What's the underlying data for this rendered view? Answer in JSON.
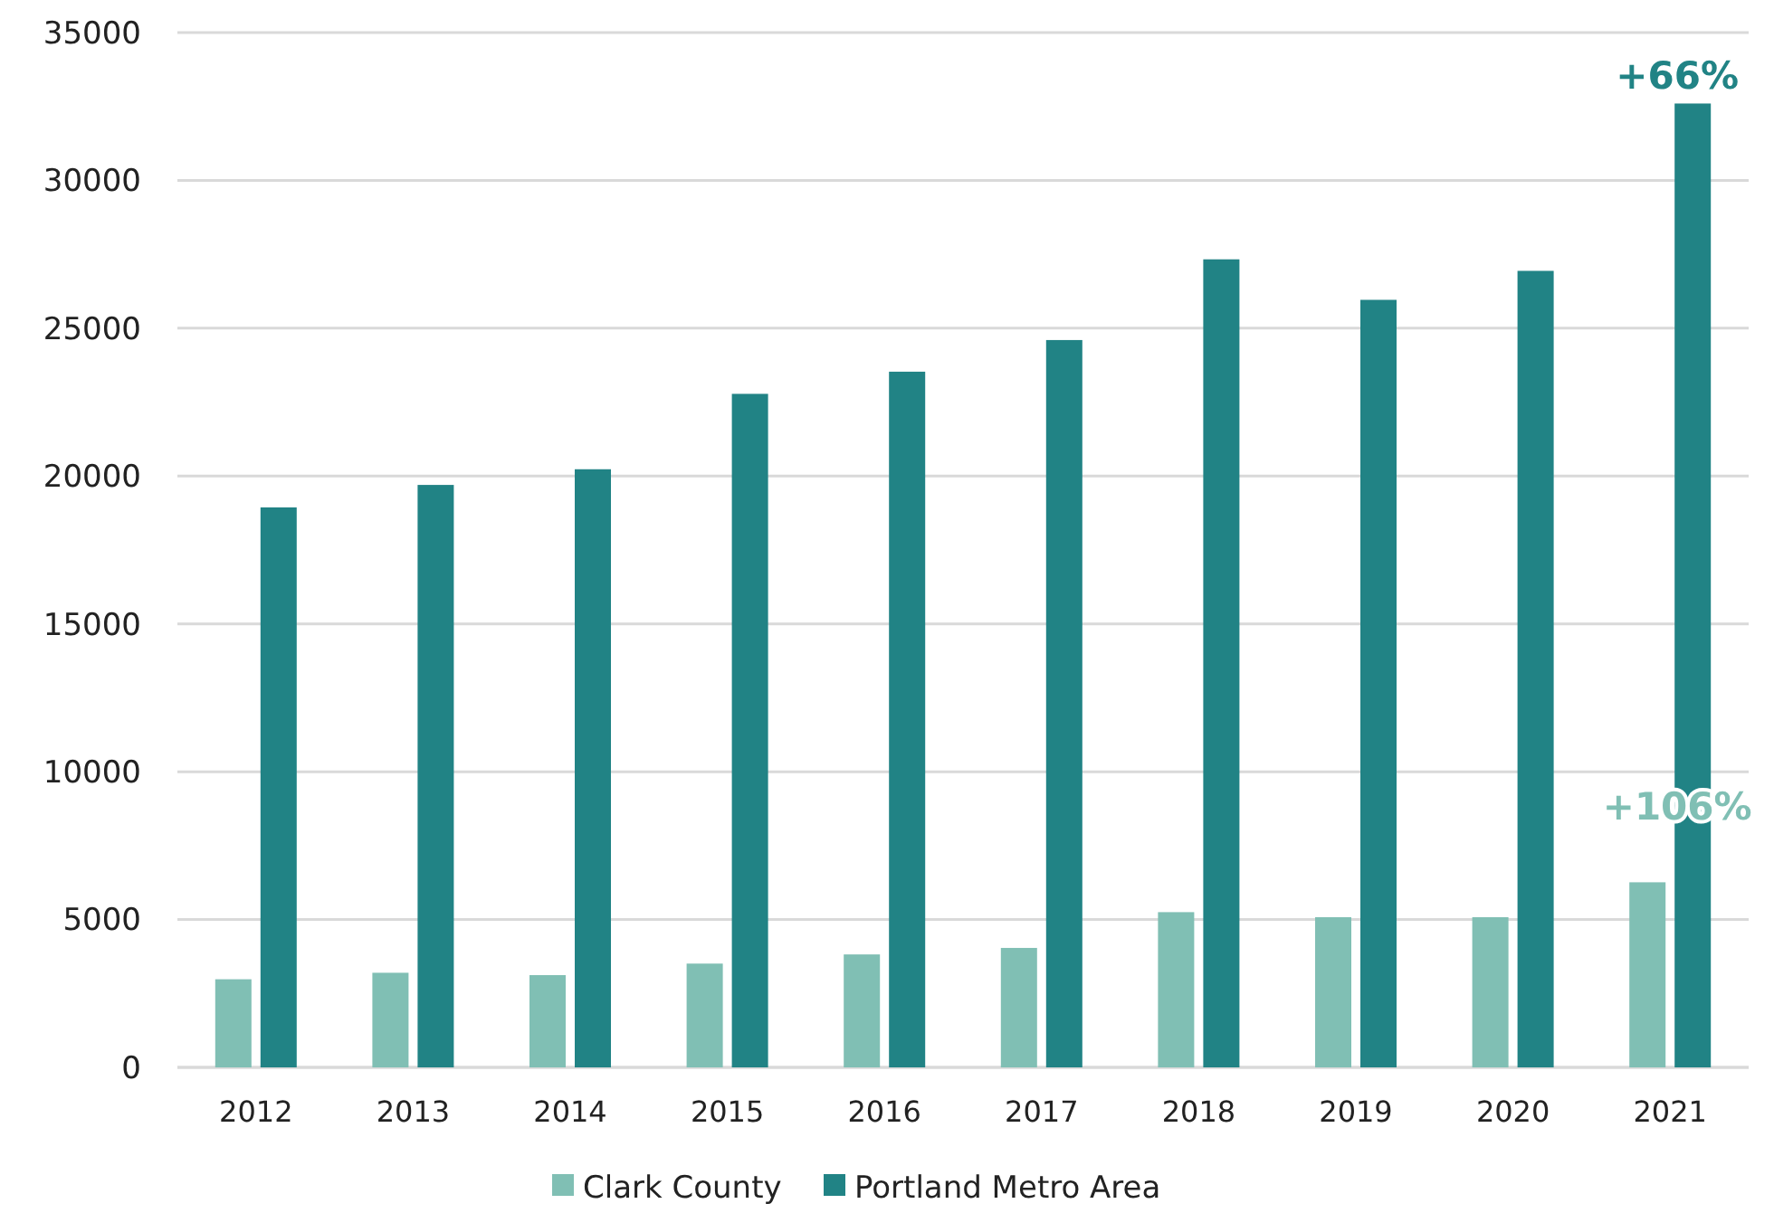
{
  "chart_data": {
    "type": "bar",
    "categories": [
      "2012",
      "2013",
      "2014",
      "2015",
      "2016",
      "2017",
      "2018",
      "2019",
      "2020",
      "2021"
    ],
    "series": [
      {
        "name": "Clark County",
        "color": "#80bfb4",
        "values": [
          2980,
          3200,
          3120,
          3510,
          3820,
          4040,
          5250,
          5080,
          5080,
          6260
        ]
      },
      {
        "name": "Portland Metro Area",
        "color": "#218385",
        "values": [
          18940,
          19700,
          20230,
          22780,
          23530,
          24600,
          27330,
          25960,
          26940,
          32600
        ]
      }
    ],
    "ylim": [
      0,
      35000
    ],
    "yticks": [
      0,
      5000,
      10000,
      15000,
      20000,
      25000,
      30000,
      35000
    ],
    "grid": "y",
    "legend": "bottom",
    "annotations": [
      {
        "text": "+66%",
        "x": "2021",
        "y": 32600
      },
      {
        "text": "+106%",
        "x": "2021",
        "y": 7900
      }
    ]
  }
}
